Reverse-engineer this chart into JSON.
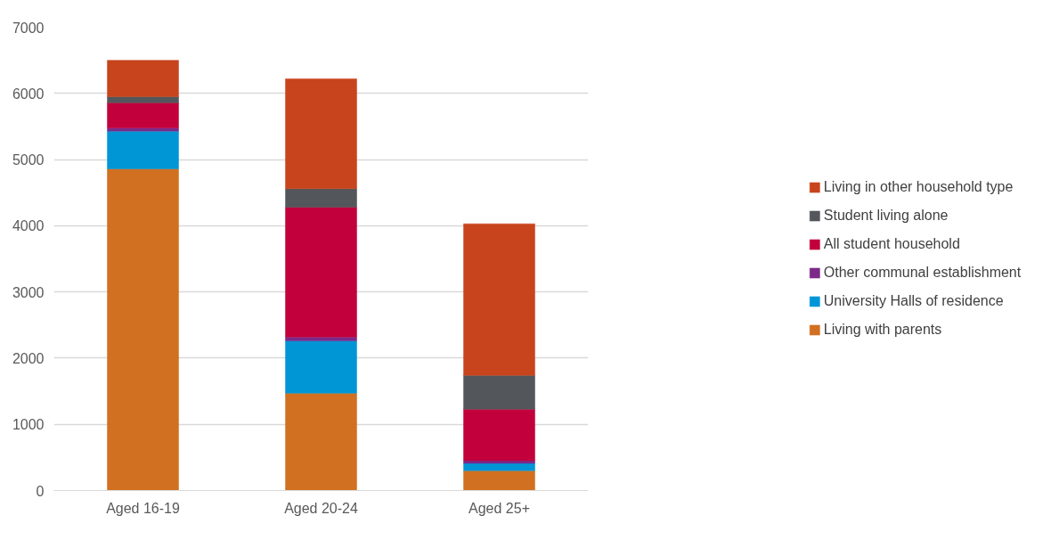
{
  "chart_data": {
    "type": "bar",
    "stacked": true,
    "categories": [
      "Aged 16-19",
      "Aged 20-24",
      "Aged 25+"
    ],
    "series": [
      {
        "name": "Living with parents",
        "color": "#d07020",
        "values": [
          4860,
          1470,
          300
        ]
      },
      {
        "name": "University Halls of residence",
        "color": "#0096d6",
        "values": [
          570,
          790,
          110
        ]
      },
      {
        "name": "Other communal establishment",
        "color": "#7b2a8a",
        "values": [
          50,
          60,
          40
        ]
      },
      {
        "name": "All student household",
        "color": "#c2003c",
        "values": [
          380,
          1960,
          780
        ]
      },
      {
        "name": "Student living alone",
        "color": "#53565a",
        "values": [
          90,
          280,
          510
        ]
      },
      {
        "name": "Living in other household type",
        "color": "#c8441c",
        "values": [
          550,
          1660,
          2290
        ]
      }
    ],
    "ylim": [
      0,
      7000
    ],
    "yticks": [
      0,
      1000,
      2000,
      3000,
      4000,
      5000,
      6000,
      7000
    ],
    "grid": "y",
    "legend": "right"
  }
}
